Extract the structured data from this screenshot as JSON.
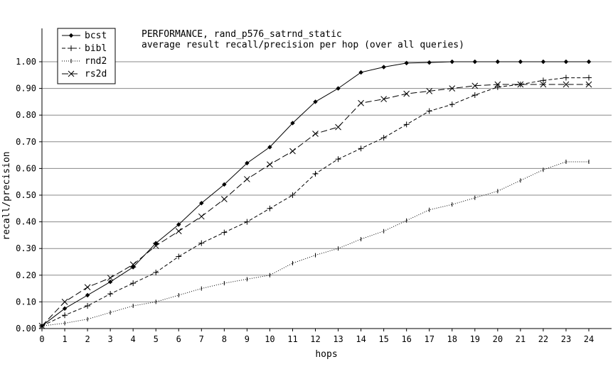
{
  "chart_data": {
    "type": "line",
    "title": "PERFORMANCE, rand_p576_satrnd_static",
    "subtitle": "average result recall/precision per hop (over all queries)",
    "xlabel": "hops",
    "ylabel": "recall/precision",
    "xlim": [
      0,
      24
    ],
    "ylim": [
      0,
      1.0
    ],
    "x_ticks": [
      "0",
      "1",
      "2",
      "3",
      "4",
      "5",
      "6",
      "7",
      "8",
      "9",
      "10",
      "11",
      "12",
      "13",
      "14",
      "15",
      "16",
      "17",
      "18",
      "19",
      "20",
      "21",
      "22",
      "23",
      "24"
    ],
    "y_ticks": [
      "0.00",
      "0.10",
      "0.20",
      "0.30",
      "0.40",
      "0.50",
      "0.60",
      "0.70",
      "0.80",
      "0.90",
      "1.00"
    ],
    "grid": "horizontal",
    "legend_position": "top-left",
    "x": [
      0,
      1,
      2,
      3,
      4,
      5,
      6,
      7,
      8,
      9,
      10,
      11,
      12,
      13,
      14,
      15,
      16,
      17,
      18,
      19,
      20,
      21,
      22,
      23,
      24
    ],
    "series": [
      {
        "name": "bcst",
        "style": "solid",
        "marker": "diamond",
        "values": [
          0.01,
          0.075,
          0.125,
          0.175,
          0.23,
          0.32,
          0.39,
          0.47,
          0.54,
          0.62,
          0.68,
          0.77,
          0.85,
          0.9,
          0.96,
          0.98,
          0.995,
          0.997,
          1.0,
          1.0,
          1.0,
          1.0,
          1.0,
          1.0,
          1.0
        ]
      },
      {
        "name": "bibl",
        "style": "dashed",
        "marker": "plus",
        "values": [
          0.01,
          0.05,
          0.085,
          0.13,
          0.17,
          0.21,
          0.27,
          0.32,
          0.36,
          0.4,
          0.45,
          0.5,
          0.58,
          0.635,
          0.675,
          0.715,
          0.765,
          0.815,
          0.84,
          0.875,
          0.905,
          0.915,
          0.93,
          0.94,
          0.94
        ]
      },
      {
        "name": "rnd2",
        "style": "dotted",
        "marker": "tick",
        "values": [
          0.01,
          0.02,
          0.035,
          0.06,
          0.085,
          0.1,
          0.125,
          0.15,
          0.17,
          0.185,
          0.2,
          0.245,
          0.275,
          0.3,
          0.335,
          0.365,
          0.405,
          0.445,
          0.465,
          0.49,
          0.515,
          0.555,
          0.595,
          0.625,
          0.625
        ]
      },
      {
        "name": "rs2d",
        "style": "longdash",
        "marker": "x",
        "values": [
          0.01,
          0.1,
          0.155,
          0.19,
          0.24,
          0.31,
          0.365,
          0.42,
          0.485,
          0.56,
          0.615,
          0.665,
          0.73,
          0.755,
          0.845,
          0.86,
          0.88,
          0.89,
          0.9,
          0.91,
          0.915,
          0.915,
          0.915,
          0.915,
          0.915
        ]
      }
    ]
  }
}
